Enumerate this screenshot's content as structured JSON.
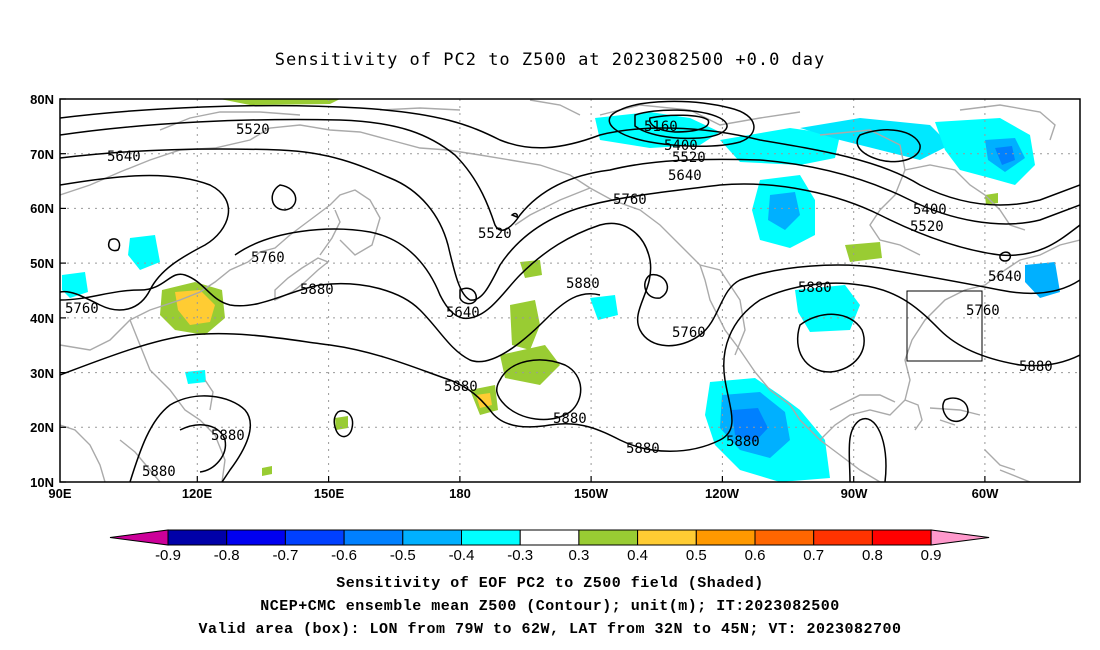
{
  "title": "Sensitivity of PC2 to Z500 at 2023082500 +0.0 day",
  "map": {
    "lon_range": [
      "90E",
      "300E"
    ],
    "lat_range": [
      "10N",
      "80N"
    ],
    "lat_ticks": [
      "80N",
      "70N",
      "60N",
      "50N",
      "40N",
      "30N",
      "20N",
      "10N"
    ],
    "lon_ticks": [
      "90E",
      "120E",
      "150E",
      "180",
      "150W",
      "120W",
      "90W",
      "60W"
    ],
    "valid_box": {
      "lon": [
        "79W",
        "62W"
      ],
      "lat": [
        "32N",
        "45N"
      ]
    },
    "contour_labels": [
      "5520",
      "5640",
      "5160",
      "5400",
      "5520",
      "5640",
      "5760",
      "5520",
      "5400",
      "5520",
      "5760",
      "5880",
      "5760",
      "5640",
      "5880",
      "5760",
      "5880",
      "5640",
      "5760",
      "5880",
      "5880",
      "5880",
      "5880",
      "5880",
      "5880",
      "5880"
    ]
  },
  "colorbar": {
    "labels": [
      "-0.9",
      "-0.8",
      "-0.7",
      "-0.6",
      "-0.5",
      "-0.4",
      "-0.3",
      "0.3",
      "0.4",
      "0.5",
      "0.6",
      "0.7",
      "0.8",
      "0.9"
    ],
    "colors": [
      "#0000a8",
      "#0000f0",
      "#0040ff",
      "#0080ff",
      "#00b0ff",
      "#00ffff",
      "#ffffff",
      "#99cc33",
      "#ffcc33",
      "#ff9900",
      "#ff6600",
      "#ff3300",
      "#ff0000"
    ],
    "low_end_color": "#cc0099",
    "high_end_color": "#ff99cc"
  },
  "caption": {
    "line1": "Sensitivity of EOF PC2 to Z500 field (Shaded)",
    "line2": "NCEP+CMC ensemble mean Z500 (Contour); unit(m); IT:2023082500",
    "line3": "Valid area (box): LON from 79W to 62W, LAT from 32N to 45N; VT: 2023082700"
  }
}
